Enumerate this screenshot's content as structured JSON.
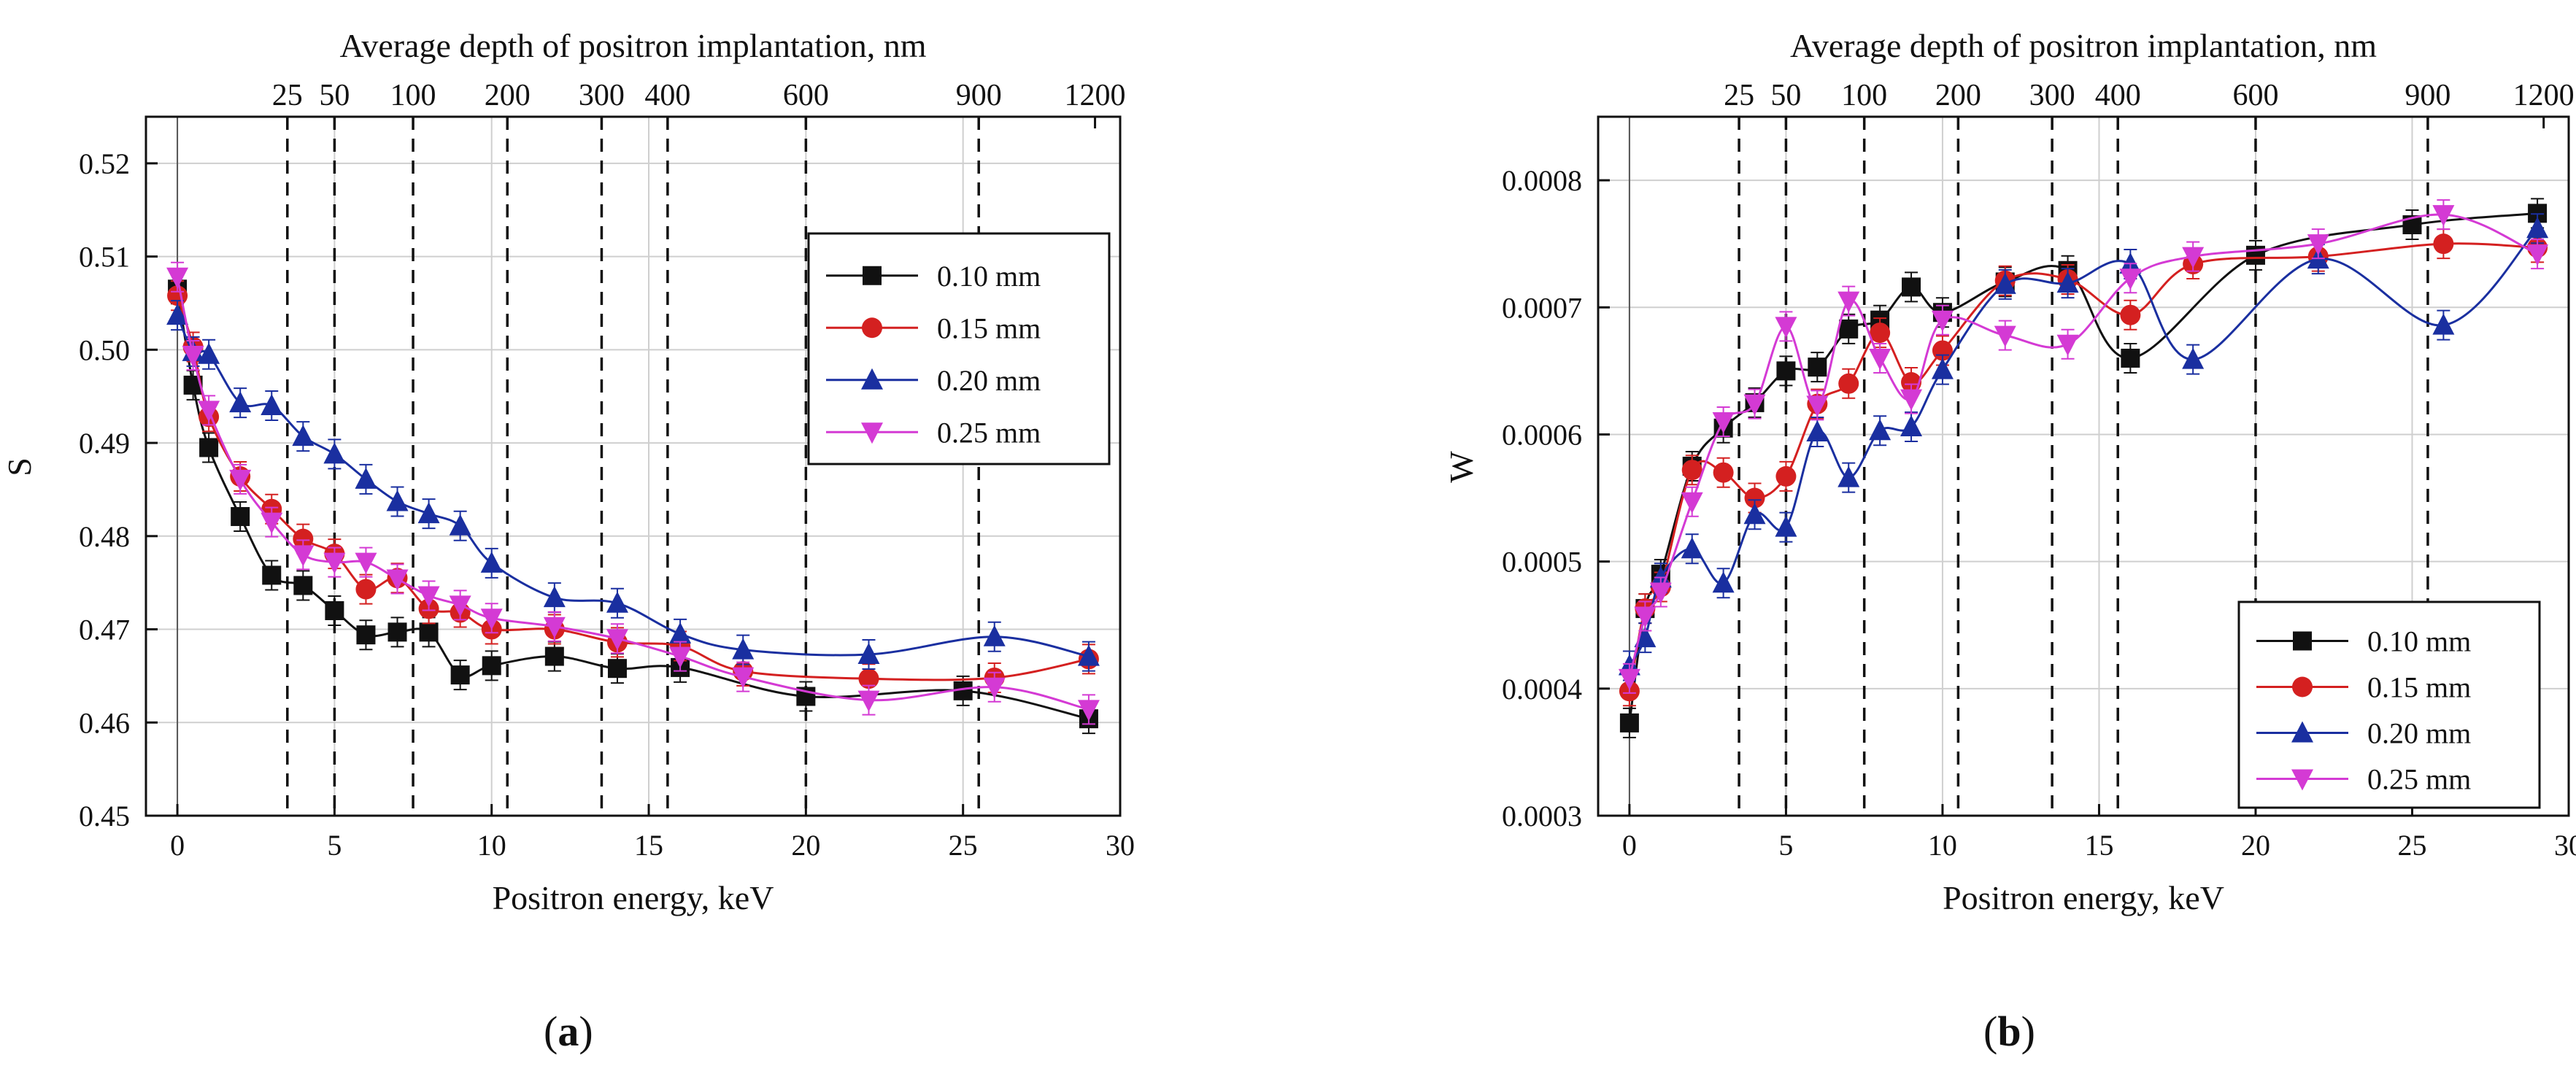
{
  "figure": {
    "panel_labels": [
      {
        "open": "(",
        "letter": "a",
        "close": ")"
      },
      {
        "open": "(",
        "letter": "b",
        "close": ")"
      }
    ]
  },
  "chart_data": [
    {
      "id": "a",
      "type": "line",
      "title": "",
      "xlabel": "Positron energy, keV",
      "ylabel": "S",
      "top_label": "Average depth of positron implantation, nm",
      "xlim": [
        -1,
        30
      ],
      "ylim": [
        0.45,
        0.525
      ],
      "xticks": [
        0,
        5,
        10,
        15,
        20,
        25,
        30
      ],
      "yticks": [
        0.45,
        0.46,
        0.47,
        0.48,
        0.49,
        0.5,
        0.51,
        0.52
      ],
      "ytick_labels": [
        "0.45",
        "0.46",
        "0.47",
        "0.48",
        "0.49",
        "0.50",
        "0.51",
        "0.52"
      ],
      "top_ticks": [
        {
          "label": "25",
          "energy": 3.5
        },
        {
          "label": "50",
          "energy": 5
        },
        {
          "label": "100",
          "energy": 7.5
        },
        {
          "label": "200",
          "energy": 10.5
        },
        {
          "label": "300",
          "energy": 13.5
        },
        {
          "label": "400",
          "energy": 15.6
        },
        {
          "label": "600",
          "energy": 20
        },
        {
          "label": "900",
          "energy": 25.5
        },
        {
          "label": "1200",
          "energy": 29.2
        }
      ],
      "legend_position": "top-right",
      "series": [
        {
          "name": "0.10 mm",
          "color": "#111111",
          "marker": "square",
          "x": [
            0,
            0.5,
            1,
            2,
            3,
            4,
            5,
            6,
            7,
            8,
            9,
            10,
            12,
            14,
            16,
            20,
            25,
            29
          ],
          "y": [
            0.5065,
            0.4962,
            0.4895,
            0.4821,
            0.4758,
            0.4747,
            0.472,
            0.4694,
            0.4697,
            0.4697,
            0.4651,
            0.4661,
            0.4671,
            0.4658,
            0.4659,
            0.4628,
            0.4634,
            0.4604
          ]
        },
        {
          "name": "0.15 mm",
          "color": "#d42020",
          "marker": "circle",
          "x": [
            0,
            0.5,
            1,
            2,
            3,
            4,
            5,
            6,
            7,
            8,
            9,
            10,
            12,
            14,
            16,
            18,
            22,
            26,
            29
          ],
          "y": [
            0.5058,
            0.5003,
            0.4928,
            0.4864,
            0.4829,
            0.4797,
            0.4781,
            0.4743,
            0.4755,
            0.4722,
            0.4718,
            0.47,
            0.47,
            0.4686,
            0.4682,
            0.4655,
            0.4647,
            0.4648,
            0.4668
          ]
        },
        {
          "name": "0.20 mm",
          "color": "#1a2fa0",
          "marker": "triangle-up",
          "x": [
            0,
            0.5,
            1,
            2,
            3,
            4,
            5,
            6,
            7,
            8,
            9,
            10,
            12,
            14,
            16,
            18,
            22,
            26,
            29
          ],
          "y": [
            0.5037,
            0.4998,
            0.4995,
            0.4943,
            0.494,
            0.4907,
            0.4888,
            0.4861,
            0.4837,
            0.4824,
            0.4811,
            0.4771,
            0.4734,
            0.4728,
            0.4695,
            0.4678,
            0.4673,
            0.4692,
            0.4671
          ]
        },
        {
          "name": "0.25 mm",
          "color": "#d43ad4",
          "marker": "triangle-down",
          "x": [
            0,
            0.5,
            1,
            2,
            3,
            4,
            5,
            6,
            7,
            8,
            9,
            10,
            12,
            14,
            16,
            18,
            22,
            26,
            29
          ],
          "y": [
            0.5078,
            0.4994,
            0.4935,
            0.4861,
            0.4815,
            0.478,
            0.4772,
            0.4772,
            0.4754,
            0.4736,
            0.4726,
            0.4712,
            0.4703,
            0.469,
            0.4671,
            0.4649,
            0.4624,
            0.4638,
            0.4614
          ]
        }
      ]
    },
    {
      "id": "b",
      "type": "line",
      "title": "",
      "xlabel": "Positron energy, keV",
      "ylabel": "W",
      "top_label": "Average depth of positron implantation, nm",
      "xlim": [
        -1,
        30
      ],
      "ylim": [
        0.0003,
        0.00085
      ],
      "xticks": [
        0,
        5,
        10,
        15,
        20,
        25,
        30
      ],
      "yticks": [
        0.0003,
        0.0004,
        0.0005,
        0.0006,
        0.0007,
        0.0008
      ],
      "ytick_labels": [
        "0.0003",
        "0.0004",
        "0.0005",
        "0.0006",
        "0.0007",
        "0.0008"
      ],
      "top_ticks": [
        {
          "label": "25",
          "energy": 3.5
        },
        {
          "label": "50",
          "energy": 5
        },
        {
          "label": "100",
          "energy": 7.5
        },
        {
          "label": "200",
          "energy": 10.5
        },
        {
          "label": "300",
          "energy": 13.5
        },
        {
          "label": "400",
          "energy": 15.6
        },
        {
          "label": "600",
          "energy": 20
        },
        {
          "label": "900",
          "energy": 25.5
        },
        {
          "label": "1200",
          "energy": 29.2
        }
      ],
      "legend_position": "bottom-right",
      "series": [
        {
          "name": "0.10 mm",
          "color": "#111111",
          "marker": "square",
          "x": [
            0,
            0.5,
            1,
            2,
            3,
            4,
            5,
            6,
            7,
            8,
            9,
            10,
            12,
            14,
            16,
            20,
            25,
            29
          ],
          "y": [
            0.000373,
            0.000463,
            0.00049,
            0.000575,
            0.000605,
            0.000625,
            0.00065,
            0.000653,
            0.000683,
            0.00069,
            0.000716,
            0.000696,
            0.00072,
            0.000729,
            0.00066,
            0.000741,
            0.000765,
            0.000774
          ]
        },
        {
          "name": "0.15 mm",
          "color": "#d42020",
          "marker": "circle",
          "x": [
            0,
            0.5,
            1,
            2,
            3,
            4,
            5,
            6,
            7,
            8,
            9,
            10,
            12,
            14,
            16,
            18,
            22,
            26,
            29
          ],
          "y": [
            0.000398,
            0.000463,
            0.00048,
            0.000572,
            0.00057,
            0.00055,
            0.000567,
            0.000624,
            0.00064,
            0.00068,
            0.000641,
            0.000666,
            0.000721,
            0.000722,
            0.000694,
            0.000734,
            0.00074,
            0.00075,
            0.000747
          ]
        },
        {
          "name": "0.20 mm",
          "color": "#1a2fa0",
          "marker": "triangle-up",
          "x": [
            0,
            0.5,
            1,
            2,
            3,
            4,
            5,
            6,
            7,
            8,
            9,
            10,
            12,
            14,
            16,
            18,
            22,
            26,
            29
          ],
          "y": [
            0.000418,
            0.00044,
            0.000487,
            0.00051,
            0.000483,
            0.000537,
            0.000527,
            0.000602,
            0.000566,
            0.000603,
            0.000606,
            0.000651,
            0.000718,
            0.000719,
            0.000734,
            0.000659,
            0.000738,
            0.000686,
            0.000762
          ]
        },
        {
          "name": "0.25 mm",
          "color": "#d43ad4",
          "marker": "triangle-down",
          "x": [
            0,
            0.5,
            1,
            2,
            3,
            4,
            5,
            6,
            7,
            8,
            9,
            10,
            12,
            14,
            16,
            18,
            22,
            26,
            29
          ],
          "y": [
            0.000408,
            0.000457,
            0.000476,
            0.000547,
            0.00061,
            0.000624,
            0.000685,
            0.000623,
            0.000705,
            0.00066,
            0.000628,
            0.00069,
            0.000678,
            0.000671,
            0.000723,
            0.00074,
            0.00075,
            0.000773,
            0.000742
          ]
        }
      ]
    }
  ]
}
